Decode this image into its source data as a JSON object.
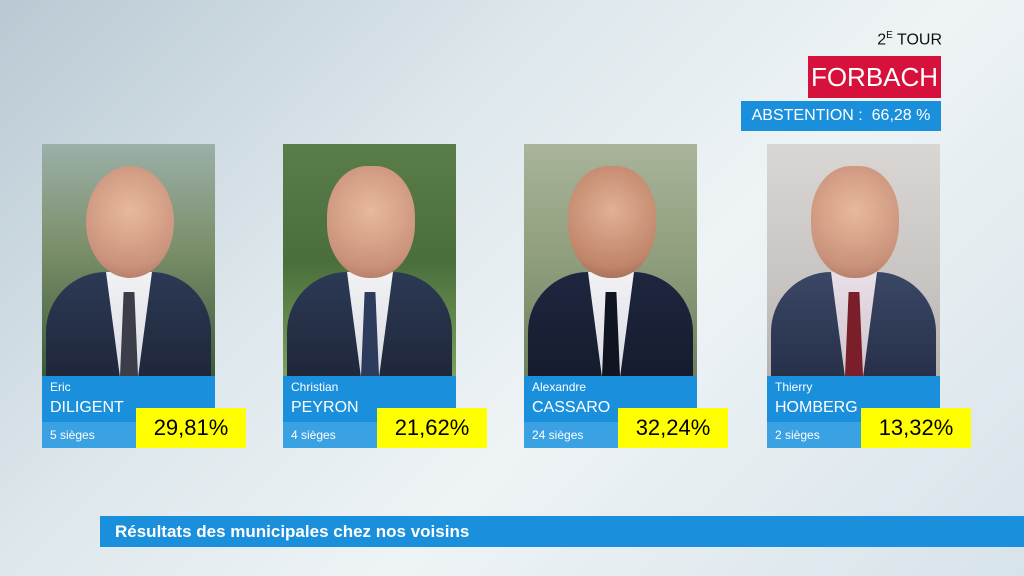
{
  "header": {
    "tour_number": "2",
    "tour_suffix": "E",
    "tour_text": " TOUR",
    "city": "FORBACH",
    "abstention": "ABSTENTION :  66,28 %"
  },
  "candidates": [
    {
      "first": "Eric",
      "last": "DILIGENT",
      "seats": "5 sièges",
      "pct": "29,81%"
    },
    {
      "first": "Christian",
      "last": "PEYRON",
      "seats": "4 sièges",
      "pct": "21,62%"
    },
    {
      "first": "Alexandre",
      "last": "CASSARO",
      "seats": "24 sièges",
      "pct": "32,24%"
    },
    {
      "first": "Thierry",
      "last": "HOMBERG",
      "seats": "2 sièges",
      "pct": "13,32%"
    }
  ],
  "footer": {
    "title": "Résultats des municipales chez nos voisins"
  },
  "colors": {
    "accent": "#1a8fdc",
    "city_bg": "#d6113c",
    "pct_bg": "#ffff00"
  }
}
